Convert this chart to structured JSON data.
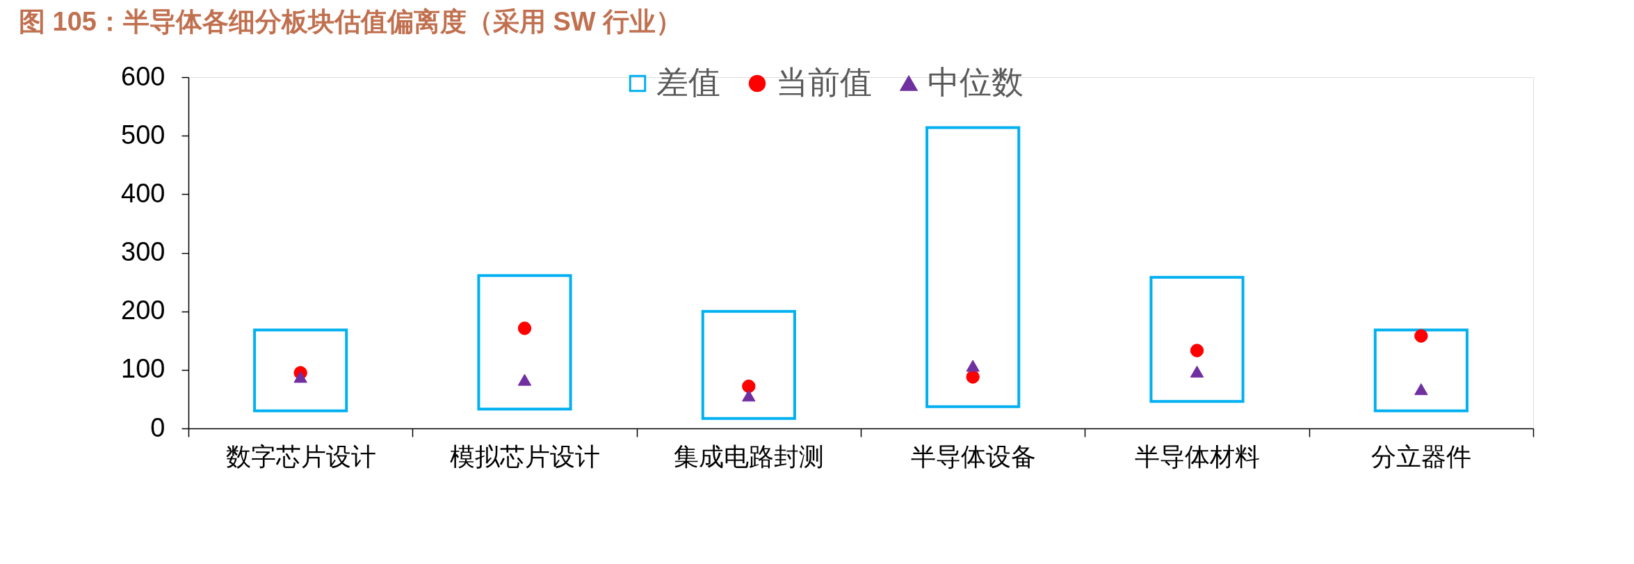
{
  "chart_data": {
    "type": "bar",
    "title": "图 105：半导体各细分板块估值偏离度（采用 SW 行业）",
    "categories": [
      "数字芯片设计",
      "模拟芯片设计",
      "集成电路封测",
      "半导体设备",
      "半导体材料",
      "分立器件"
    ],
    "series": [
      {
        "name": "差值",
        "color": "#00b0f0",
        "base": [
          30,
          33,
          17,
          37,
          46,
          30
        ],
        "values": [
          138,
          228,
          183,
          477,
          212,
          138
        ]
      },
      {
        "name": "当前值",
        "type": "scatter",
        "marker": "circle",
        "color": "#ff0000",
        "values": [
          95,
          171,
          72,
          88,
          133,
          158
        ]
      },
      {
        "name": "中位数",
        "type": "scatter",
        "marker": "triangle",
        "color": "#7030a0",
        "values": [
          88,
          83,
          56,
          107,
          97,
          67
        ]
      }
    ],
    "ylim": [
      0,
      600
    ],
    "yticks": [
      0,
      100,
      200,
      300,
      400,
      500,
      600
    ],
    "grid": false,
    "legend": "top"
  }
}
